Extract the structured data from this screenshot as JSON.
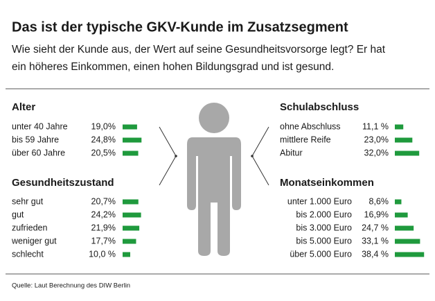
{
  "title": "Das ist der typische GKV-Kunde im Zusatzsegment",
  "subtitle": [
    "Wie sieht der Kunde aus, der Wert auf seine Gesundheitsvorsorge legt? Er hat",
    "ein höheres Einkommen, einen hohen Bildungsgrad und ist gesund."
  ],
  "source": "Quelle: Laut Berechnung des DIW Berlin",
  "chart_data": [
    {
      "type": "bar",
      "title": "Alter",
      "color": "#1f9a3d",
      "categories": [
        "unter 40 Jahre",
        "bis 59 Jahre",
        "über 60 Jahre"
      ],
      "values": [
        19.0,
        24.8,
        20.5
      ],
      "value_labels": [
        "19,0%",
        "24,8%",
        "20,5%"
      ]
    },
    {
      "type": "bar",
      "title": "Gesundheitszustand",
      "color": "#1f9a3d",
      "categories": [
        "sehr gut",
        "gut",
        "zufrieden",
        "weniger gut",
        "schlecht"
      ],
      "values": [
        20.7,
        24.2,
        21.9,
        17.7,
        10.0
      ],
      "value_labels": [
        "20,7%",
        "24,2%",
        "21,9%",
        "17,7%",
        "10,0 %"
      ]
    },
    {
      "type": "bar",
      "title": "Schulabschluss",
      "color": "#1f9a3d",
      "categories": [
        "ohne Abschluss",
        "mittlere Reife",
        "Abitur"
      ],
      "values": [
        11.1,
        23.0,
        32.0
      ],
      "value_labels": [
        "11,1 %",
        "23,0%",
        "32,0%"
      ]
    },
    {
      "type": "bar",
      "title": "Monatseinkommen",
      "color": "#1f9a3d",
      "categories": [
        "unter 1.000 Euro",
        "bis 2.000 Euro",
        "bis 3.000 Euro",
        "bis 5.000 Euro",
        "über 5.000 Euro"
      ],
      "values": [
        8.6,
        16.9,
        24.7,
        33.1,
        38.4
      ],
      "value_labels": [
        "8,6%",
        "16,9%",
        "24,7 %",
        "33,1 %",
        "38,4 %"
      ]
    }
  ]
}
